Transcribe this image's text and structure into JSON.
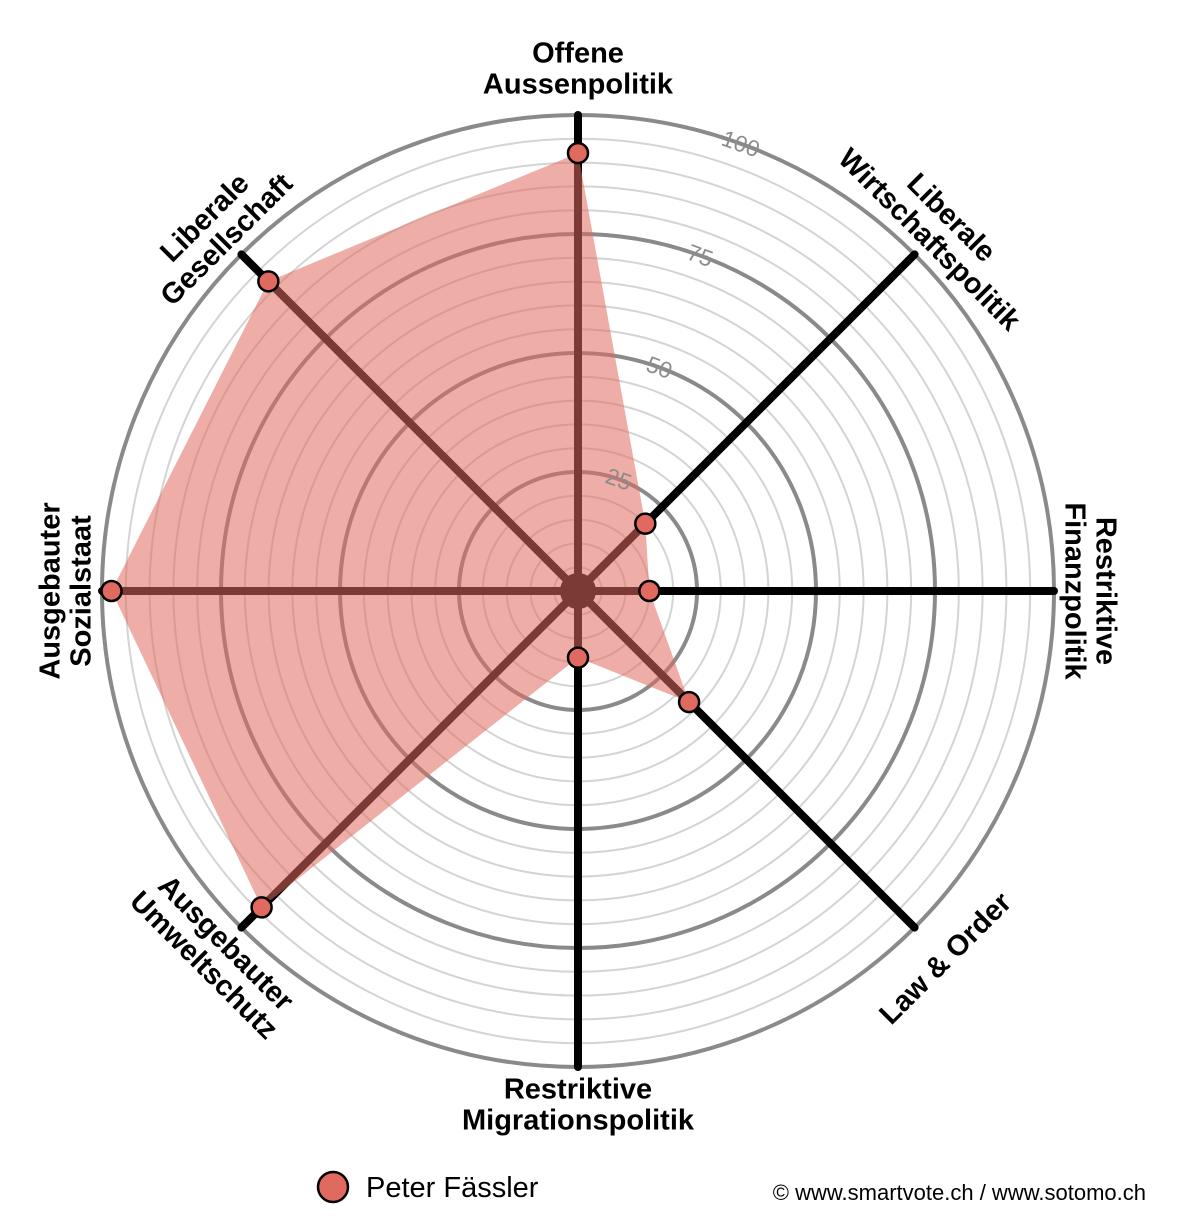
{
  "chart_data": {
    "type": "radar",
    "axes": [
      [
        "Offene",
        "Aussenpolitik"
      ],
      [
        "Liberale",
        "Wirtschaftspolitik"
      ],
      [
        "Restriktive",
        "Finanzpolitik"
      ],
      [
        "Law & Order"
      ],
      [
        "Restriktive",
        "Migrationspolitik"
      ],
      [
        "Ausgebauter",
        "Umweltschutz"
      ],
      [
        "Ausgebauter",
        "Sozialstaat"
      ],
      [
        "Liberale",
        "Gesellschaft"
      ]
    ],
    "series": [
      {
        "name": "Peter Fässler",
        "values": [
          92,
          20,
          15,
          33,
          14,
          94,
          98,
          92
        ]
      }
    ],
    "rlim": [
      0,
      100
    ],
    "tick_labels": [
      "25",
      "50",
      "75",
      "100"
    ],
    "minor_grid_step": 5,
    "colors": {
      "series_fill": "#e06a5f",
      "series_point": "#e06a5f",
      "major_grid": "#8a8a8a",
      "minor_grid": "#d4d4d4",
      "spoke": "#000000"
    }
  },
  "legend": {
    "label": "Peter Fässler"
  },
  "footer": {
    "copyright": "© www.smartvote.ch / www.sotomo.ch"
  }
}
